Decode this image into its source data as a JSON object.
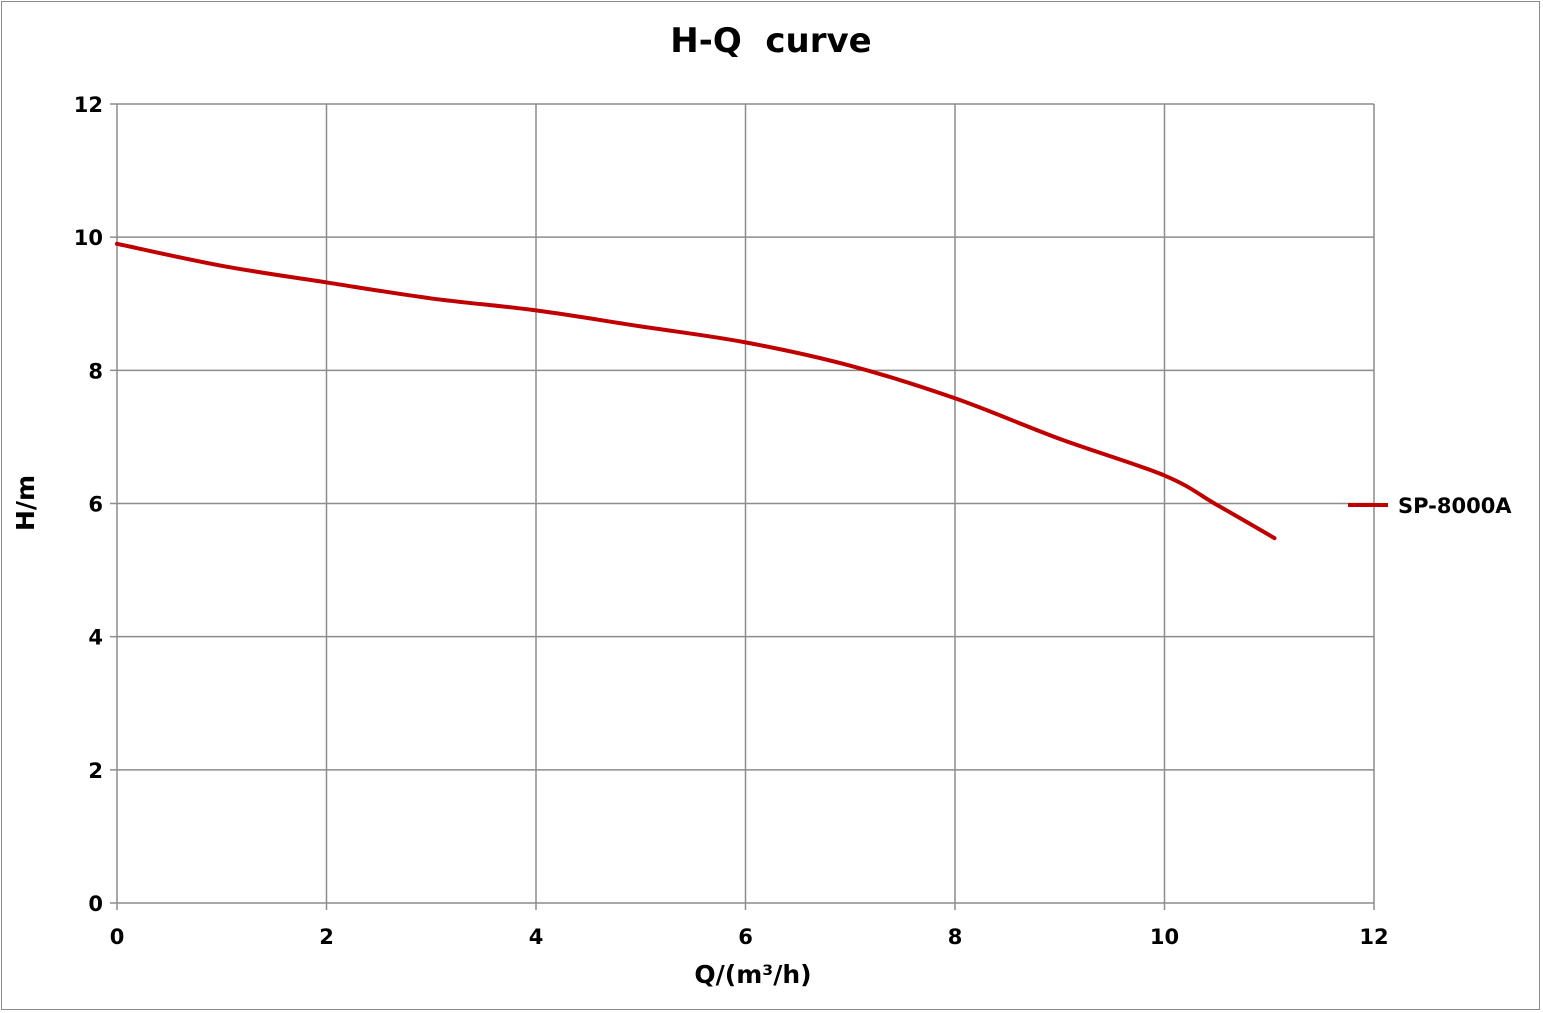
{
  "chart_data": {
    "type": "line",
    "title": "H-Q  curve",
    "xlabel": "Q/(m³/h)",
    "ylabel": "H/m",
    "xlim": [
      0,
      12
    ],
    "ylim": [
      0,
      12
    ],
    "xticks": [
      0,
      2,
      4,
      6,
      8,
      10,
      12
    ],
    "yticks": [
      0,
      2,
      4,
      6,
      8,
      10,
      12
    ],
    "grid": true,
    "legend_position": "right",
    "series": [
      {
        "name": "SP-8000A",
        "color": "#c00000",
        "x": [
          0,
          1,
          2,
          3,
          4,
          5,
          6,
          7,
          8,
          9,
          10,
          10.5,
          11.05
        ],
        "y": [
          9.9,
          9.57,
          9.32,
          9.08,
          8.9,
          8.66,
          8.42,
          8.07,
          7.58,
          6.97,
          6.42,
          5.98,
          5.48
        ]
      }
    ]
  }
}
